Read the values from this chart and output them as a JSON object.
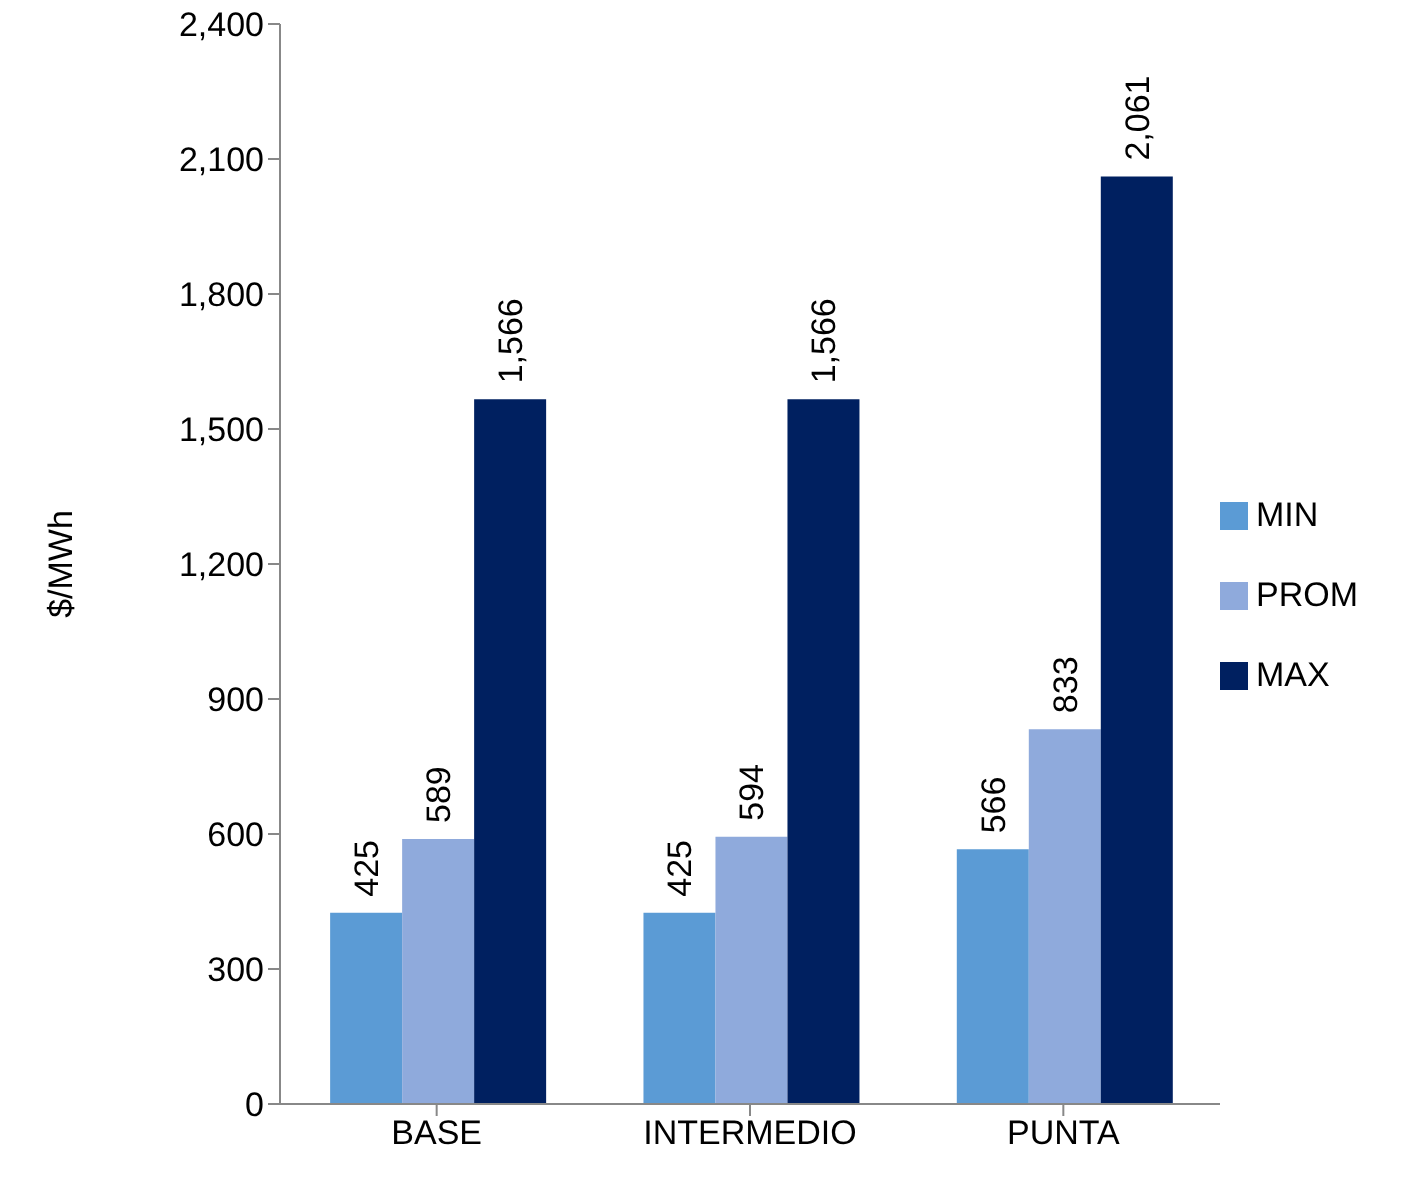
{
  "chart_data": {
    "type": "bar",
    "ylabel": "$/MWh",
    "categories": [
      "BASE",
      "INTERMEDIO",
      "PUNTA"
    ],
    "series": [
      {
        "name": "MIN",
        "color": "#5b9bd5",
        "values": [
          425,
          425,
          566
        ],
        "value_labels": [
          "425",
          "425",
          "566"
        ]
      },
      {
        "name": "PROM",
        "color": "#8faadc",
        "values": [
          589,
          594,
          833
        ],
        "value_labels": [
          "589",
          "594",
          "833"
        ]
      },
      {
        "name": "MAX",
        "color": "#002060",
        "values": [
          1566,
          1566,
          2061
        ],
        "value_labels": [
          "1,566",
          "1,566",
          "2,061"
        ]
      }
    ],
    "ylim": [
      0,
      2400
    ],
    "yticks": [
      {
        "value": 0,
        "label": "0"
      },
      {
        "value": 300,
        "label": "300"
      },
      {
        "value": 600,
        "label": "600"
      },
      {
        "value": 900,
        "label": "900"
      },
      {
        "value": 1200,
        "label": "1,200"
      },
      {
        "value": 1500,
        "label": "1,500"
      },
      {
        "value": 1800,
        "label": "1,800"
      },
      {
        "value": 2100,
        "label": "2,100"
      },
      {
        "value": 2400,
        "label": "2,400"
      }
    ],
    "grid": false,
    "legend": "right"
  }
}
